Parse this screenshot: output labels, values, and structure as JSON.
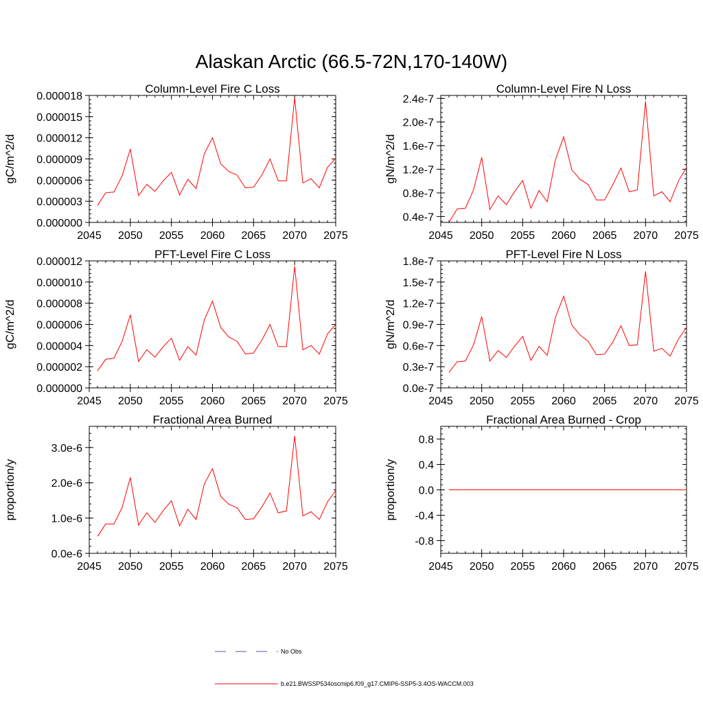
{
  "main_title": "Alaskan Arctic (66.5-72N,170-140W)",
  "colors": {
    "series": "#ff0000",
    "obs": "#5555bb",
    "axis": "#000000"
  },
  "legend": {
    "obs_label": "No Obs",
    "case_label": "b.e21.BWSSP534oscmip6.f09_g17.CMIP6-SSP5-3.4OS-WACCM.003"
  },
  "chart_data": [
    {
      "type": "line",
      "title": "Column-Level Fire C Loss",
      "ylabel": "gC/m^2/d",
      "xlim": [
        2045,
        2075
      ],
      "ylim": [
        0,
        1.8e-05
      ],
      "xticks": [
        2045,
        2050,
        2055,
        2060,
        2065,
        2070,
        2075
      ],
      "xticklabels": [
        "2045",
        "2050",
        "2055",
        "2060",
        "2065",
        "2070",
        "2075"
      ],
      "yticks": [
        0,
        3e-06,
        6e-06,
        9e-06,
        1.2e-05,
        1.5e-05,
        1.8e-05
      ],
      "yticklabels": [
        "0.000000",
        "0.000003",
        "0.000006",
        "0.000009",
        "0.000012",
        "0.000015",
        "0.000018"
      ],
      "x": [
        2046,
        2047,
        2048,
        2049,
        2050,
        2051,
        2052,
        2053,
        2054,
        2055,
        2056,
        2057,
        2058,
        2059,
        2060,
        2061,
        2062,
        2063,
        2064,
        2065,
        2066,
        2067,
        2068,
        2069,
        2070,
        2071,
        2072,
        2073,
        2074,
        2075
      ],
      "series": [
        {
          "name": "b.e21.BWSSP534oscmip6.f09_g17.CMIP6-SSP5-3.4OS-WACCM.003",
          "values": [
            2.4e-06,
            4.2e-06,
            4.3e-06,
            6.6e-06,
            1.04e-05,
            3.8e-06,
            5.4e-06,
            4.4e-06,
            5.9e-06,
            7.1e-06,
            3.9e-06,
            6.1e-06,
            4.8e-06,
            9.7e-06,
            1.2e-05,
            8.3e-06,
            7.2e-06,
            6.7e-06,
            4.9e-06,
            5e-06,
            6.7e-06,
            9e-06,
            5.9e-06,
            5.9e-06,
            1.77e-05,
            5.6e-06,
            6.2e-06,
            4.9e-06,
            7.8e-06,
            9.1e-06
          ]
        }
      ]
    },
    {
      "type": "line",
      "title": "Column-Level Fire N Loss",
      "ylabel": "gN/m^2/d",
      "xlim": [
        2045,
        2075
      ],
      "ylim": [
        3e-08,
        2.45e-07
      ],
      "xticks": [
        2045,
        2050,
        2055,
        2060,
        2065,
        2070,
        2075
      ],
      "xticklabels": [
        "2045",
        "2050",
        "2055",
        "2060",
        "2065",
        "2070",
        "2075"
      ],
      "yticks": [
        4e-08,
        8e-08,
        1.2e-07,
        1.6e-07,
        2e-07,
        2.4e-07
      ],
      "yticklabels": [
        "0.4e-7",
        "0.8e-7",
        "1.2e-7",
        "1.6e-7",
        "2.0e-7",
        "2.4e-7"
      ],
      "x": [
        2046,
        2047,
        2048,
        2049,
        2050,
        2051,
        2052,
        2053,
        2054,
        2055,
        2056,
        2057,
        2058,
        2059,
        2060,
        2061,
        2062,
        2063,
        2064,
        2065,
        2066,
        2067,
        2068,
        2069,
        2070,
        2071,
        2072,
        2073,
        2074,
        2075
      ],
      "series": [
        {
          "name": "b.e21.BWSSP534oscmip6.f09_g17.CMIP6-SSP5-3.4OS-WACCM.003",
          "values": [
            3e-08,
            5.3e-08,
            5.4e-08,
            8.5e-08,
            1.4e-07,
            5.2e-08,
            7.5e-08,
            6e-08,
            8.2e-08,
            1.01e-07,
            5.4e-08,
            8.4e-08,
            6.5e-08,
            1.36e-07,
            1.75e-07,
            1.19e-07,
            1.03e-07,
            9.4e-08,
            6.8e-08,
            6.8e-08,
            9.4e-08,
            1.22e-07,
            8.2e-08,
            8.5e-08,
            2.35e-07,
            7.5e-08,
            8.2e-08,
            6.5e-08,
            1e-07,
            1.23e-07
          ]
        }
      ]
    },
    {
      "type": "line",
      "title": "PFT-Level Fire C Loss",
      "ylabel": "gC/m^2/d",
      "xlim": [
        2045,
        2075
      ],
      "ylim": [
        0,
        1.2e-05
      ],
      "xticks": [
        2045,
        2050,
        2055,
        2060,
        2065,
        2070,
        2075
      ],
      "xticklabels": [
        "2045",
        "2050",
        "2055",
        "2060",
        "2065",
        "2070",
        "2075"
      ],
      "yticks": [
        0,
        2e-06,
        4e-06,
        6e-06,
        8e-06,
        1e-05,
        1.2e-05
      ],
      "yticklabels": [
        "0.000000",
        "0.000002",
        "0.000004",
        "0.000006",
        "0.000008",
        "0.000010",
        "0.000012"
      ],
      "x": [
        2046,
        2047,
        2048,
        2049,
        2050,
        2051,
        2052,
        2053,
        2054,
        2055,
        2056,
        2057,
        2058,
        2059,
        2060,
        2061,
        2062,
        2063,
        2064,
        2065,
        2066,
        2067,
        2068,
        2069,
        2070,
        2071,
        2072,
        2073,
        2074,
        2075
      ],
      "series": [
        {
          "name": "b.e21.BWSSP534oscmip6.f09_g17.CMIP6-SSP5-3.4OS-WACCM.003",
          "values": [
            1.6e-06,
            2.7e-06,
            2.8e-06,
            4.4e-06,
            6.9e-06,
            2.5e-06,
            3.6e-06,
            2.9e-06,
            3.9e-06,
            4.7e-06,
            2.6e-06,
            3.9e-06,
            3.1e-06,
            6.4e-06,
            8.2e-06,
            5.7e-06,
            4.8e-06,
            4.4e-06,
            3.2e-06,
            3.3e-06,
            4.5e-06,
            6e-06,
            3.9e-06,
            3.9e-06,
            1.15e-05,
            3.6e-06,
            4e-06,
            3.2e-06,
            5.1e-06,
            6e-06
          ]
        }
      ]
    },
    {
      "type": "line",
      "title": "PFT-Level Fire N Loss",
      "ylabel": "gN/m^2/d",
      "xlim": [
        2045,
        2075
      ],
      "ylim": [
        0,
        1.8e-07
      ],
      "xticks": [
        2045,
        2050,
        2055,
        2060,
        2065,
        2070,
        2075
      ],
      "xticklabels": [
        "2045",
        "2050",
        "2055",
        "2060",
        "2065",
        "2070",
        "2075"
      ],
      "yticks": [
        0,
        3e-08,
        6e-08,
        9e-08,
        1.2e-07,
        1.5e-07,
        1.8e-07
      ],
      "yticklabels": [
        "0.0e-7",
        "0.3e-7",
        "0.6e-7",
        "0.9e-7",
        "1.2e-7",
        "1.5e-7",
        "1.8e-7"
      ],
      "x": [
        2046,
        2047,
        2048,
        2049,
        2050,
        2051,
        2052,
        2053,
        2054,
        2055,
        2056,
        2057,
        2058,
        2059,
        2060,
        2061,
        2062,
        2063,
        2064,
        2065,
        2066,
        2067,
        2068,
        2069,
        2070,
        2071,
        2072,
        2073,
        2074,
        2075
      ],
      "series": [
        {
          "name": "b.e21.BWSSP534oscmip6.f09_g17.CMIP6-SSP5-3.4OS-WACCM.003",
          "values": [
            2.2e-08,
            3.7e-08,
            3.8e-08,
            6.1e-08,
            1.01e-07,
            3.8e-08,
            5.3e-08,
            4.3e-08,
            5.9e-08,
            7.3e-08,
            3.9e-08,
            5.9e-08,
            4.6e-08,
            1e-07,
            1.3e-07,
            8.9e-08,
            7.5e-08,
            6.6e-08,
            4.7e-08,
            4.8e-08,
            6.5e-08,
            8.8e-08,
            6e-08,
            6.1e-08,
            1.65e-07,
            5.2e-08,
            5.6e-08,
            4.5e-08,
            6.9e-08,
            8.6e-08
          ]
        }
      ]
    },
    {
      "type": "line",
      "title": "Fractional Area Burned",
      "ylabel": "proportion/y",
      "xlim": [
        2045,
        2075
      ],
      "ylim": [
        0,
        3.6e-06
      ],
      "xticks": [
        2045,
        2050,
        2055,
        2060,
        2065,
        2070,
        2075
      ],
      "xticklabels": [
        "2045",
        "2050",
        "2055",
        "2060",
        "2065",
        "2070",
        "2075"
      ],
      "yticks": [
        0,
        1e-06,
        2e-06,
        3e-06
      ],
      "yticklabels": [
        "0.0e-6",
        "1.0e-6",
        "2.0e-6",
        "3.0e-6"
      ],
      "x": [
        2046,
        2047,
        2048,
        2049,
        2050,
        2051,
        2052,
        2053,
        2054,
        2055,
        2056,
        2057,
        2058,
        2059,
        2060,
        2061,
        2062,
        2063,
        2064,
        2065,
        2066,
        2067,
        2068,
        2069,
        2070,
        2071,
        2072,
        2073,
        2074,
        2075
      ],
      "series": [
        {
          "name": "b.e21.BWSSP534oscmip6.f09_g17.CMIP6-SSP5-3.4OS-WACCM.003",
          "values": [
            4.8e-07,
            8.3e-07,
            8.3e-07,
            1.3e-06,
            2.15e-06,
            8e-07,
            1.15e-06,
            8.8e-07,
            1.21e-06,
            1.49e-06,
            7.8e-07,
            1.25e-06,
            9.6e-07,
            1.96e-06,
            2.4e-06,
            1.61e-06,
            1.39e-06,
            1.29e-06,
            9.6e-07,
            9.8e-07,
            1.31e-06,
            1.71e-06,
            1.15e-06,
            1.2e-06,
            3.33e-06,
            1.06e-06,
            1.18e-06,
            9.6e-07,
            1.46e-06,
            1.78e-06
          ]
        }
      ]
    },
    {
      "type": "line",
      "title": "Fractional Area Burned - Crop",
      "ylabel": "proportion/y",
      "xlim": [
        2045,
        2075
      ],
      "ylim": [
        -1,
        1
      ],
      "xticks": [
        2045,
        2050,
        2055,
        2060,
        2065,
        2070,
        2075
      ],
      "xticklabels": [
        "2045",
        "2050",
        "2055",
        "2060",
        "2065",
        "2070",
        "2075"
      ],
      "yticks": [
        -0.8,
        -0.4,
        0,
        0.4,
        0.8
      ],
      "yticklabels": [
        "-0.8",
        "-0.4",
        "0.0",
        "0.4",
        "0.8"
      ],
      "x": [
        2046,
        2047,
        2048,
        2049,
        2050,
        2051,
        2052,
        2053,
        2054,
        2055,
        2056,
        2057,
        2058,
        2059,
        2060,
        2061,
        2062,
        2063,
        2064,
        2065,
        2066,
        2067,
        2068,
        2069,
        2070,
        2071,
        2072,
        2073,
        2074,
        2075
      ],
      "series": [
        {
          "name": "b.e21.BWSSP534oscmip6.f09_g17.CMIP6-SSP5-3.4OS-WACCM.003",
          "values": [
            0,
            0,
            0,
            0,
            0,
            0,
            0,
            0,
            0,
            0,
            0,
            0,
            0,
            0,
            0,
            0,
            0,
            0,
            0,
            0,
            0,
            0,
            0,
            0,
            0,
            0,
            0,
            0,
            0,
            0
          ]
        }
      ]
    }
  ]
}
